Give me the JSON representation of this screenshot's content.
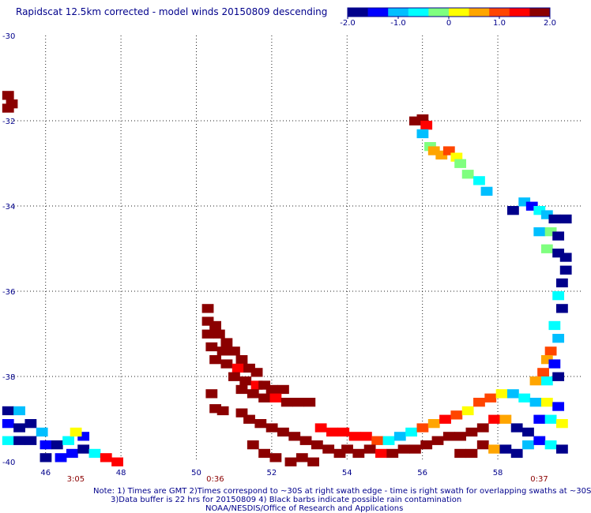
{
  "title": "Rapidscat 12.5km corrected - model winds 20150809 descending",
  "colorbar": {
    "min": -2.0,
    "max": 2.0,
    "tick_labels": [
      "-2.0",
      "-1.0",
      "0",
      "1.0",
      "2.0"
    ],
    "colors": [
      "#00008b",
      "#0000ff",
      "#00bfff",
      "#00ffff",
      "#7fff7f",
      "#ffff00",
      "#ffa500",
      "#ff4500",
      "#ff0000",
      "#8b0000"
    ]
  },
  "chart_data": {
    "type": "heatmap",
    "title": "Rapidscat 12.5km corrected - model winds 20150809 descending",
    "xlim": [
      45,
      60.2
    ],
    "ylim": [
      -40,
      -30
    ],
    "x_ticks": [
      "46",
      "48",
      "50",
      "52",
      "54",
      "56",
      "58"
    ],
    "y_ticks": [
      "-30",
      "-32",
      "-34",
      "-36",
      "-38",
      "-40"
    ],
    "grid": true,
    "value_range": [
      -2.0,
      2.0
    ],
    "swath_times": [
      {
        "x": 46.8,
        "label": "3:05"
      },
      {
        "x": 50.5,
        "label": "0:36"
      },
      {
        "x": 59.1,
        "label": "0:37"
      }
    ],
    "cells": [
      [
        45.0,
        -31.4,
        2.0
      ],
      [
        45.1,
        -31.6,
        1.8
      ],
      [
        45.0,
        -31.7,
        2.0
      ],
      [
        55.8,
        -32.0,
        2.0
      ],
      [
        56.0,
        -31.95,
        2.0
      ],
      [
        56.1,
        -32.1,
        1.3
      ],
      [
        56.0,
        -32.3,
        -0.9
      ],
      [
        56.2,
        -32.6,
        -0.3
      ],
      [
        56.3,
        -32.7,
        0.4
      ],
      [
        56.5,
        -32.8,
        0.6
      ],
      [
        56.7,
        -32.7,
        0.8
      ],
      [
        56.9,
        -32.85,
        0.2
      ],
      [
        57.0,
        -33.0,
        -0.1
      ],
      [
        57.2,
        -33.25,
        -0.3
      ],
      [
        57.5,
        -33.4,
        -0.5
      ],
      [
        57.7,
        -33.65,
        -0.9
      ],
      [
        58.4,
        -34.1,
        -1.8
      ],
      [
        58.7,
        -33.9,
        -1.2
      ],
      [
        58.9,
        -34.0,
        -1.5
      ],
      [
        59.1,
        -34.1,
        -0.6
      ],
      [
        59.3,
        -34.2,
        -1.2
      ],
      [
        59.5,
        -34.3,
        -1.8
      ],
      [
        59.8,
        -34.3,
        -1.7
      ],
      [
        59.1,
        -34.6,
        -0.9
      ],
      [
        59.4,
        -34.6,
        -0.4
      ],
      [
        59.6,
        -34.7,
        -1.6
      ],
      [
        59.3,
        -35.0,
        -0.3
      ],
      [
        59.6,
        -35.1,
        -1.9
      ],
      [
        59.8,
        -35.2,
        -2.0
      ],
      [
        59.8,
        -35.5,
        -1.9
      ],
      [
        59.7,
        -35.8,
        -2.0
      ],
      [
        59.6,
        -36.1,
        -0.8
      ],
      [
        59.7,
        -36.4,
        -1.9
      ],
      [
        59.5,
        -36.8,
        -0.7
      ],
      [
        59.6,
        -37.1,
        -1.2
      ],
      [
        59.4,
        -37.4,
        1.0
      ],
      [
        59.3,
        -37.6,
        0.4
      ],
      [
        59.5,
        -37.7,
        -1.4
      ],
      [
        59.2,
        -37.9,
        1.1
      ],
      [
        59.0,
        -38.1,
        0.6
      ],
      [
        59.3,
        -38.1,
        -0.6
      ],
      [
        59.6,
        -38.0,
        -1.6
      ],
      [
        50.3,
        -36.4,
        2.0
      ],
      [
        50.3,
        -36.7,
        2.0
      ],
      [
        50.5,
        -36.8,
        2.0
      ],
      [
        50.3,
        -37.0,
        2.0
      ],
      [
        50.6,
        -37.0,
        2.0
      ],
      [
        50.8,
        -37.2,
        2.0
      ],
      [
        50.4,
        -37.3,
        2.0
      ],
      [
        50.7,
        -37.4,
        2.0
      ],
      [
        51.0,
        -37.4,
        2.0
      ],
      [
        51.2,
        -37.6,
        2.0
      ],
      [
        50.5,
        -37.6,
        2.0
      ],
      [
        50.8,
        -37.7,
        2.0
      ],
      [
        51.1,
        -37.8,
        1.5
      ],
      [
        51.4,
        -37.8,
        2.0
      ],
      [
        51.6,
        -37.9,
        2.0
      ],
      [
        51.0,
        -38.0,
        2.0
      ],
      [
        51.3,
        -38.1,
        2.0
      ],
      [
        51.6,
        -38.2,
        1.2
      ],
      [
        51.8,
        -38.2,
        2.0
      ],
      [
        52.0,
        -38.3,
        2.0
      ],
      [
        52.3,
        -38.3,
        2.0
      ],
      [
        51.2,
        -38.3,
        2.0
      ],
      [
        51.5,
        -38.4,
        2.0
      ],
      [
        51.8,
        -38.5,
        2.0
      ],
      [
        52.1,
        -38.5,
        1.4
      ],
      [
        52.4,
        -38.6,
        2.0
      ],
      [
        52.7,
        -38.6,
        2.0
      ],
      [
        53.0,
        -38.6,
        2.0
      ],
      [
        50.4,
        -38.4,
        1.8
      ],
      [
        50.5,
        -38.75,
        1.8
      ],
      [
        50.7,
        -38.8,
        1.8
      ],
      [
        51.2,
        -38.85,
        2.0
      ],
      [
        51.4,
        -39.0,
        2.0
      ],
      [
        51.7,
        -39.1,
        2.0
      ],
      [
        52.0,
        -39.2,
        2.0
      ],
      [
        52.3,
        -39.3,
        1.8
      ],
      [
        52.6,
        -39.4,
        2.0
      ],
      [
        52.9,
        -39.5,
        1.9
      ],
      [
        53.2,
        -39.6,
        1.9
      ],
      [
        53.5,
        -39.7,
        1.8
      ],
      [
        53.8,
        -39.8,
        2.0
      ],
      [
        51.5,
        -39.6,
        2.0
      ],
      [
        51.8,
        -39.8,
        2.0
      ],
      [
        52.1,
        -39.9,
        2.0
      ],
      [
        52.5,
        -40.0,
        2.0
      ],
      [
        52.8,
        -39.9,
        2.0
      ],
      [
        53.1,
        -40.0,
        2.0
      ],
      [
        53.3,
        -39.2,
        1.4
      ],
      [
        53.6,
        -39.3,
        1.2
      ],
      [
        53.9,
        -39.3,
        1.3
      ],
      [
        54.2,
        -39.4,
        1.5
      ],
      [
        54.5,
        -39.4,
        1.3
      ],
      [
        54.8,
        -39.5,
        1.0
      ],
      [
        55.1,
        -39.5,
        -0.6
      ],
      [
        55.4,
        -39.4,
        -0.9
      ],
      [
        55.7,
        -39.3,
        -0.5
      ],
      [
        56.0,
        -39.2,
        1.0
      ],
      [
        56.3,
        -39.1,
        0.5
      ],
      [
        56.6,
        -39.0,
        1.3
      ],
      [
        56.9,
        -38.9,
        0.8
      ],
      [
        57.2,
        -38.8,
        0.3
      ],
      [
        57.5,
        -38.6,
        0.9
      ],
      [
        57.8,
        -38.5,
        1.1
      ],
      [
        58.1,
        -38.4,
        0.2
      ],
      [
        58.4,
        -38.4,
        -1.0
      ],
      [
        58.7,
        -38.5,
        -0.5
      ],
      [
        59.0,
        -38.6,
        -1.1
      ],
      [
        59.3,
        -38.6,
        0.1
      ],
      [
        59.6,
        -38.7,
        -1.5
      ],
      [
        54.0,
        -39.7,
        2.0
      ],
      [
        54.3,
        -39.8,
        1.9
      ],
      [
        54.6,
        -39.7,
        2.0
      ],
      [
        54.9,
        -39.8,
        1.5
      ],
      [
        55.2,
        -39.8,
        2.0
      ],
      [
        55.5,
        -39.7,
        2.0
      ],
      [
        55.8,
        -39.7,
        1.7
      ],
      [
        56.1,
        -39.6,
        2.0
      ],
      [
        56.4,
        -39.5,
        2.0
      ],
      [
        56.7,
        -39.4,
        2.0
      ],
      [
        57.0,
        -39.4,
        2.0
      ],
      [
        57.3,
        -39.3,
        2.0
      ],
      [
        57.6,
        -39.2,
        2.0
      ],
      [
        57.9,
        -39.0,
        1.2
      ],
      [
        58.2,
        -39.0,
        0.4
      ],
      [
        58.5,
        -39.2,
        -1.6
      ],
      [
        58.8,
        -39.3,
        -1.9
      ],
      [
        59.1,
        -39.0,
        -1.3
      ],
      [
        59.4,
        -39.0,
        -0.6
      ],
      [
        59.7,
        -39.1,
        0.3
      ],
      [
        57.0,
        -39.8,
        2.0
      ],
      [
        57.3,
        -39.8,
        2.0
      ],
      [
        57.6,
        -39.6,
        1.8
      ],
      [
        57.9,
        -39.7,
        0.4
      ],
      [
        58.2,
        -39.7,
        -1.8
      ],
      [
        58.5,
        -39.8,
        -2.0
      ],
      [
        58.8,
        -39.6,
        -1.2
      ],
      [
        59.1,
        -39.5,
        -1.4
      ],
      [
        59.4,
        -39.6,
        -0.5
      ],
      [
        59.7,
        -39.7,
        -1.8
      ],
      [
        45.0,
        -38.8,
        -1.8
      ],
      [
        45.3,
        -38.8,
        -1.0
      ],
      [
        45.0,
        -39.1,
        -1.5
      ],
      [
        45.3,
        -39.2,
        -1.7
      ],
      [
        45.6,
        -39.1,
        -1.8
      ],
      [
        45.9,
        -39.3,
        -1.2
      ],
      [
        45.0,
        -39.5,
        -0.8
      ],
      [
        45.3,
        -39.5,
        -1.6
      ],
      [
        45.6,
        -39.5,
        -1.9
      ],
      [
        46.0,
        -39.6,
        -1.4
      ],
      [
        46.3,
        -39.6,
        -1.9
      ],
      [
        46.6,
        -39.5,
        -0.7
      ],
      [
        46.0,
        -39.9,
        -1.8
      ],
      [
        46.4,
        -39.9,
        -1.5
      ],
      [
        46.7,
        -39.8,
        -1.3
      ],
      [
        47.0,
        -39.7,
        -1.8
      ],
      [
        47.3,
        -39.8,
        -0.6
      ],
      [
        47.6,
        -39.9,
        1.2
      ],
      [
        47.9,
        -40.0,
        1.4
      ],
      [
        47.0,
        -39.4,
        -1.4
      ],
      [
        46.8,
        -39.3,
        0.1
      ]
    ]
  },
  "notes": {
    "line1": "Note: 1) Times are GMT 2)Times correspond to ~30S at right swath edge - time is right swath for overlapping swaths at ~30S",
    "line2": "3)Data buffer is 22 hrs for 20150809 4) Black barbs indicate possible rain contamination",
    "line3": "NOAA/NESDIS/Office of Research and Applications"
  }
}
